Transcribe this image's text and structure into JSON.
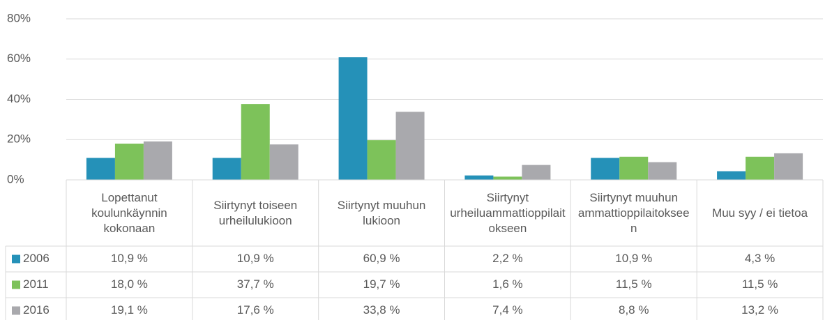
{
  "chart_data": {
    "type": "bar",
    "categories": [
      "Lopettanut koulunkäynnin kokonaan",
      "Siirtynyt toiseen urheilulukioon",
      "Siirtynyt muuhun lukioon",
      "Siirtynyt urheiluammattioppilaitokseen",
      "Siirtynyt muuhun ammattioppilaitokseen",
      "Muu syy / ei tietoa"
    ],
    "series": [
      {
        "name": "2006",
        "color": "#2591b8",
        "values": [
          10.9,
          10.9,
          60.9,
          2.2,
          10.9,
          4.3
        ],
        "value_labels": [
          "10,9 %",
          "10,9 %",
          "60,9 %",
          "2,2 %",
          "10,9 %",
          "4,3 %"
        ]
      },
      {
        "name": "2011",
        "color": "#7dc25a",
        "values": [
          18.0,
          37.7,
          19.7,
          1.6,
          11.5,
          11.5
        ],
        "value_labels": [
          "18,0 %",
          "37,7 %",
          "19,7 %",
          "1,6 %",
          "11,5 %",
          "11,5 %"
        ]
      },
      {
        "name": "2016",
        "color": "#a9a9ad",
        "values": [
          19.1,
          17.6,
          33.8,
          7.4,
          8.8,
          13.2
        ],
        "value_labels": [
          "19,1 %",
          "17,6 %",
          "33,8 %",
          "7,4 %",
          "8,8 %",
          "13,2 %"
        ]
      }
    ],
    "ylim": [
      0,
      80
    ],
    "yticks": [
      {
        "value": 0,
        "label": "0%"
      },
      {
        "value": 20,
        "label": "20%"
      },
      {
        "value": 40,
        "label": "40%"
      },
      {
        "value": 60,
        "label": "60%"
      },
      {
        "value": 80,
        "label": "80%"
      }
    ],
    "grid": true
  }
}
